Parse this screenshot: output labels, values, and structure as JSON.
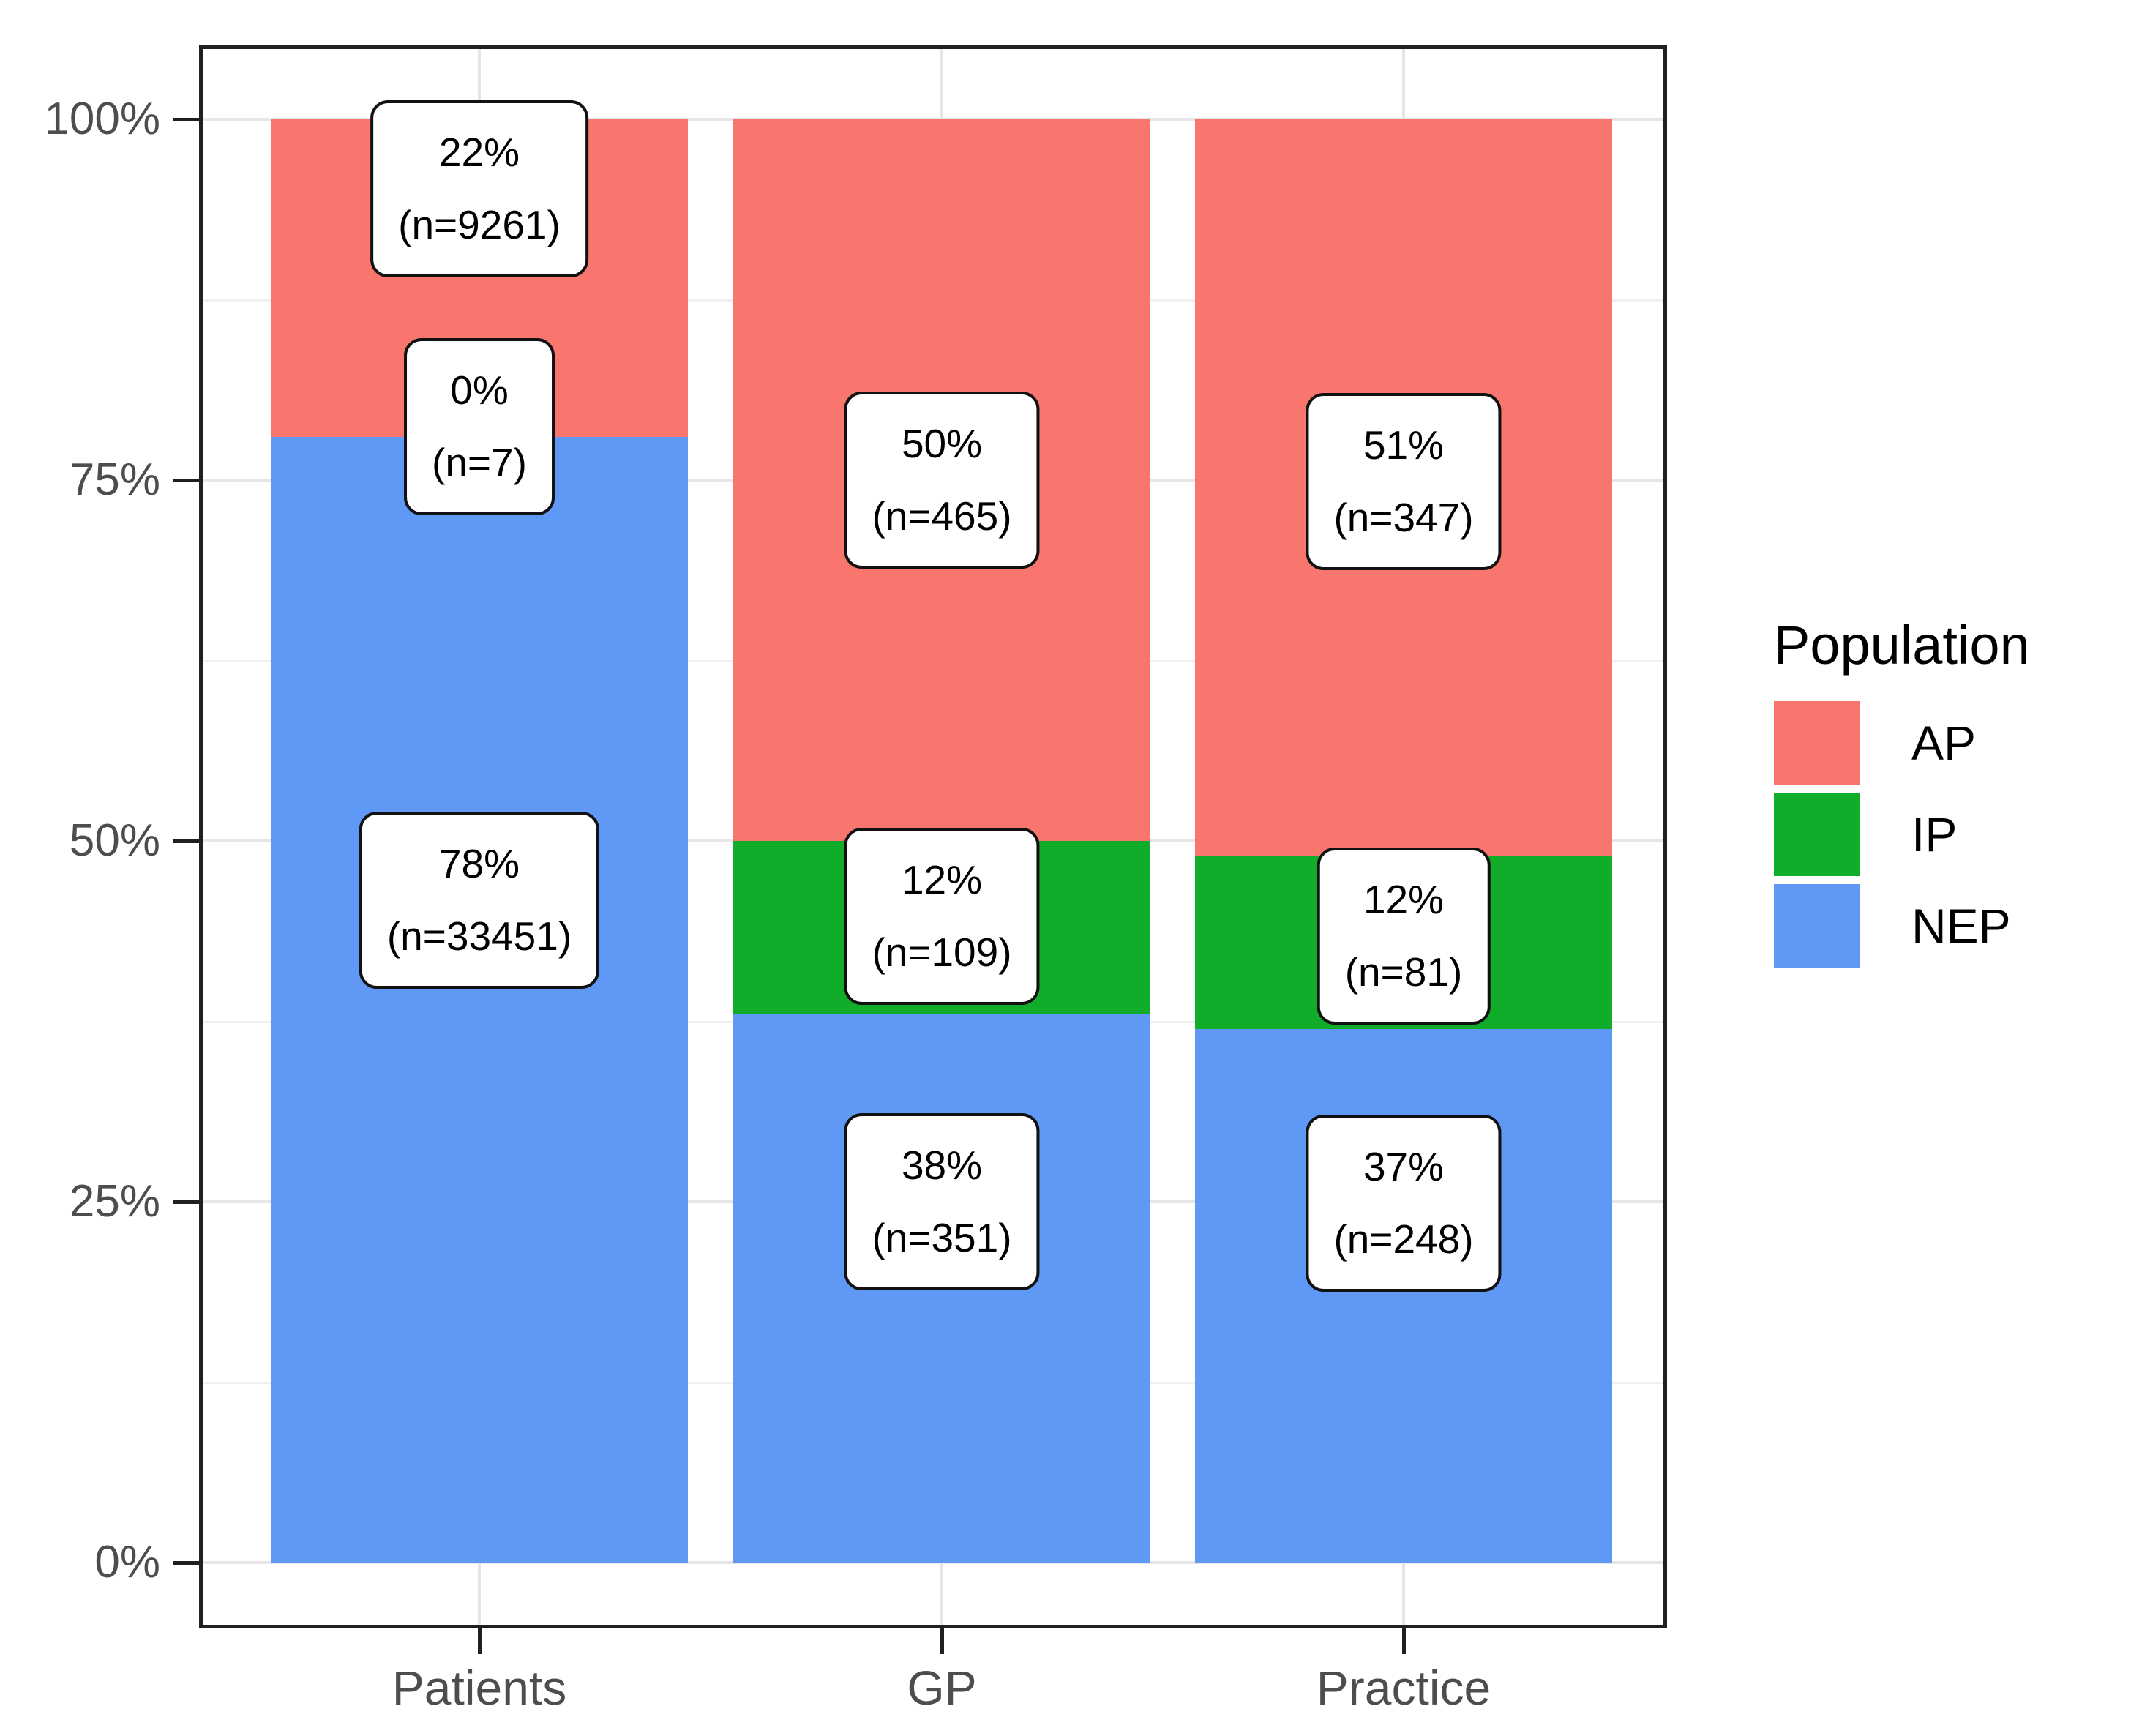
{
  "figure": {
    "background": "#ffffff"
  },
  "chart_data": {
    "type": "bar",
    "stacked": true,
    "units": "percent",
    "categories": [
      "Patients",
      "GP",
      "Practice"
    ],
    "series": [
      {
        "name": "NEP",
        "color": "#5F98F5",
        "values": [
          78,
          38,
          37
        ],
        "counts": [
          33451,
          351,
          248
        ]
      },
      {
        "name": "IP",
        "color": "#11AC2A",
        "values": [
          0,
          12,
          12
        ],
        "counts": [
          7,
          109,
          81
        ]
      },
      {
        "name": "AP",
        "color": "#F8766D",
        "values": [
          22,
          50,
          51
        ],
        "counts": [
          9261,
          465,
          347
        ]
      }
    ],
    "ylim": [
      0,
      100
    ],
    "grid": true,
    "y_ticks": [
      {
        "value": 0,
        "label": "0%"
      },
      {
        "value": 25,
        "label": "25%"
      },
      {
        "value": 50,
        "label": "50%"
      },
      {
        "value": 75,
        "label": "75%"
      },
      {
        "value": 100,
        "label": "100%"
      }
    ],
    "minor_gridlines": [
      12.5,
      37.5,
      62.5,
      87.5
    ],
    "legend": {
      "title": "Population",
      "position": "right",
      "entries": [
        {
          "label": "AP",
          "color": "#F8766D"
        },
        {
          "label": "IP",
          "color": "#11AC2A"
        },
        {
          "label": "NEP",
          "color": "#5F98F5"
        }
      ]
    },
    "labels": [
      {
        "category": "Patients",
        "series": "AP",
        "line1": "22%",
        "line2": "(n=9261)",
        "center_pct": 95.2
      },
      {
        "category": "Patients",
        "series": "IP",
        "line1": "0%",
        "line2": "(n=7)",
        "center_pct": 78.7
      },
      {
        "category": "Patients",
        "series": "NEP",
        "line1": "78%",
        "line2": "(n=33451)",
        "center_pct": 45.9
      },
      {
        "category": "GP",
        "series": "AP",
        "line1": "50%",
        "line2": "(n=465)",
        "center_pct": 75.0
      },
      {
        "category": "GP",
        "series": "IP",
        "line1": "12%",
        "line2": "(n=109)",
        "center_pct": 44.8
      },
      {
        "category": "GP",
        "series": "NEP",
        "line1": "38%",
        "line2": "(n=351)",
        "center_pct": 25.0
      },
      {
        "category": "Practice",
        "series": "AP",
        "line1": "51%",
        "line2": "(n=347)",
        "center_pct": 74.9
      },
      {
        "category": "Practice",
        "series": "IP",
        "line1": "12%",
        "line2": "(n=81)",
        "center_pct": 43.4
      },
      {
        "category": "Practice",
        "series": "NEP",
        "line1": "37%",
        "line2": "(n=248)",
        "center_pct": 24.9
      }
    ]
  }
}
